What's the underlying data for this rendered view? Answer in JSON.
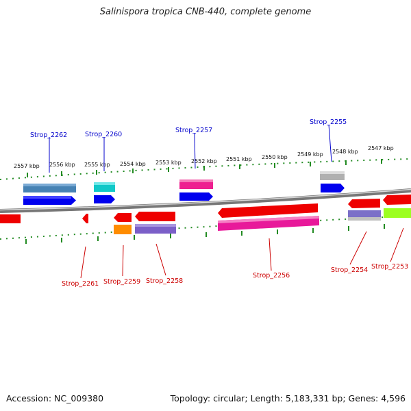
{
  "title": "Salinispora tropica CNB-440, complete genome",
  "accession": "Accession: NC_009380",
  "summary": "Topology: circular; Length: 5,183,331 bp; Genes: 4,596",
  "tick_labels": [
    {
      "label": "2557 kbp",
      "kbp": 2557
    },
    {
      "label": "2556 kbp",
      "kbp": 2556
    },
    {
      "label": "2555 kbp",
      "kbp": 2555
    },
    {
      "label": "2554 kbp",
      "kbp": 2554
    },
    {
      "label": "2553 kbp",
      "kbp": 2553
    },
    {
      "label": "2552 kbp",
      "kbp": 2552
    },
    {
      "label": "2551 kbp",
      "kbp": 2551
    },
    {
      "label": "2550 kbp",
      "kbp": 2550
    },
    {
      "label": "2549 kbp",
      "kbp": 2549
    },
    {
      "label": "2548 kbp",
      "kbp": 2548
    },
    {
      "label": "2547 kbp",
      "kbp": 2547
    }
  ],
  "genes_top": [
    {
      "label": "Strop_2262",
      "color": "#0000cc"
    },
    {
      "label": "Strop_2260",
      "color": "#0000cc"
    },
    {
      "label": "Strop_2257",
      "color": "#0000cc"
    },
    {
      "label": "Strop_2255",
      "color": "#0000cc"
    }
  ],
  "genes_bottom": [
    {
      "label": "Strop_2261",
      "color": "#cc0000"
    },
    {
      "label": "Strop_2259",
      "color": "#cc0000"
    },
    {
      "label": "Strop_2258",
      "color": "#cc0000"
    },
    {
      "label": "Strop_2256",
      "color": "#cc0000"
    },
    {
      "label": "Strop_2254",
      "color": "#cc0000"
    },
    {
      "label": "Strop_2253",
      "color": "#cc0000"
    }
  ],
  "colors": {
    "forward_cds": "#0000ee",
    "reverse_cds": "#ee0000",
    "tick": "#228b22",
    "backbone": "#888888"
  }
}
